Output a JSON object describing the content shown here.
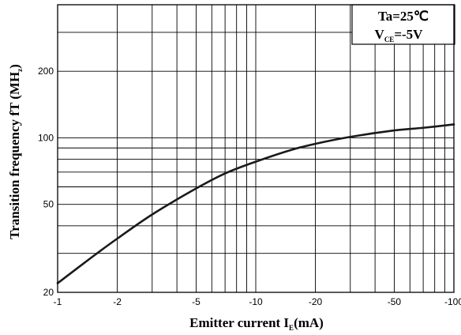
{
  "chart_data": {
    "type": "line",
    "title": "",
    "xlabel": {
      "main": "Emitter current I",
      "sub": "E",
      "suffix": "(mA)"
    },
    "ylabel": {
      "main": "Transition frequency fT (MH",
      "sub": "z",
      "suffix": ")"
    },
    "x_scale": "log",
    "y_scale": "log",
    "xlim": [
      -1,
      -100
    ],
    "ylim": [
      20,
      400
    ],
    "grid": true,
    "x_ticks": [
      "-1",
      "-2",
      "-5",
      "-10",
      "-20",
      "-50",
      "-100"
    ],
    "y_ticks": [
      "20",
      "50",
      "100",
      "200"
    ],
    "x_tick_values": [
      -1,
      -2,
      -5,
      -10,
      -20,
      -50,
      -100
    ],
    "y_tick_values": [
      20,
      50,
      100,
      200
    ],
    "x_grid_values": [
      -1,
      -2,
      -3,
      -4,
      -5,
      -6,
      -7,
      -8,
      -9,
      -10,
      -20,
      -30,
      -40,
      -50,
      -60,
      -70,
      -80,
      -90,
      -100
    ],
    "y_grid_values": [
      20,
      30,
      40,
      50,
      60,
      70,
      80,
      90,
      100,
      200,
      300,
      400
    ],
    "annotation": {
      "line1": "Ta=25℃",
      "line2_main": "V",
      "line2_sub": "CE",
      "line2_suffix": "=-5V",
      "position": "top-right"
    },
    "series": [
      {
        "x": [
          -1,
          -1.5,
          -2,
          -3,
          -5,
          -7,
          -10,
          -15,
          -20,
          -30,
          -50,
          -70,
          -100
        ],
        "y": [
          22,
          29,
          35,
          45,
          59,
          69,
          78,
          88,
          94,
          101,
          108,
          111,
          115
        ]
      }
    ],
    "colors": {
      "line": "#1a1a1a",
      "grid": "#000000"
    }
  }
}
